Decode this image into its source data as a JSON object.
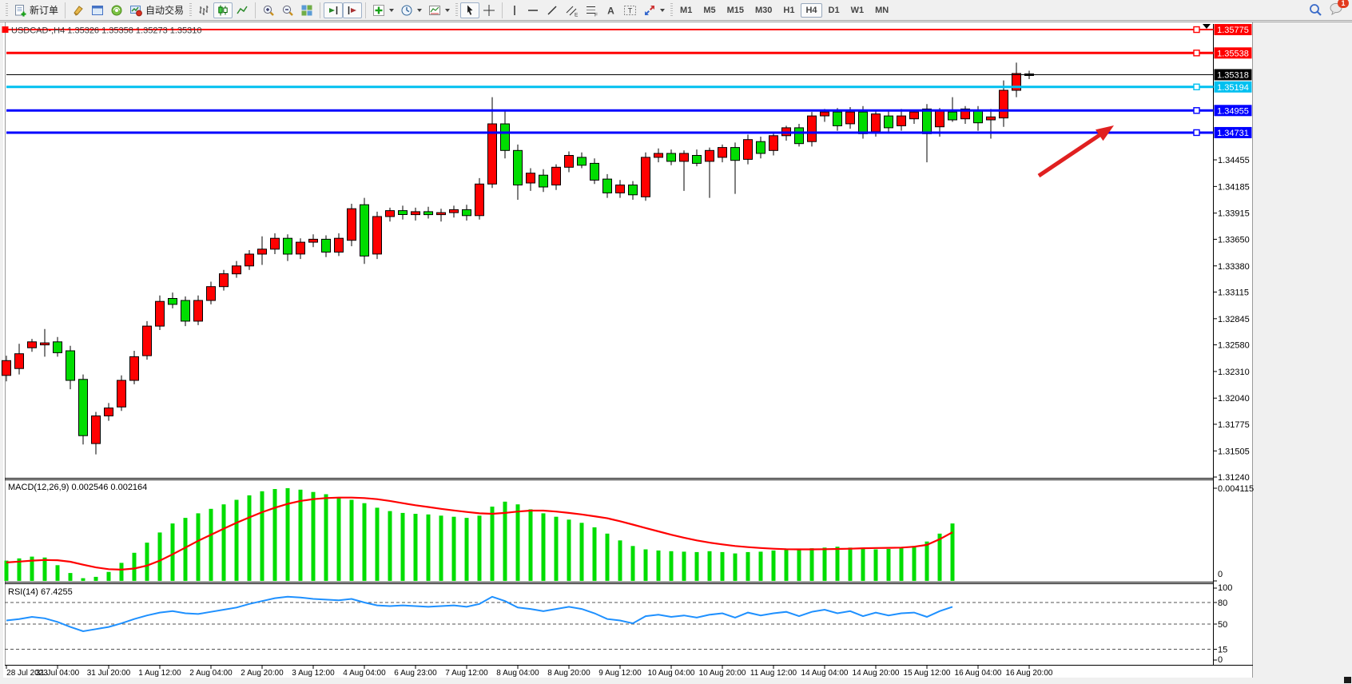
{
  "toolbar": {
    "new_order_label": "新订单",
    "auto_trading_label": "自动交易",
    "timeframes": [
      "M1",
      "M5",
      "M15",
      "M30",
      "H1",
      "H4",
      "D1",
      "W1",
      "MN"
    ],
    "active_timeframe": "H4",
    "notification_count": "1",
    "icon_letters": {
      "channel": "E",
      "fibo": "F",
      "text": "A",
      "label": "T"
    }
  },
  "window_title": {
    "symbol_period": "USDCAD-,H4",
    "ohlc": "1.35326 1.35358 1.35273 1.35310",
    "full": "USDCAD-,H4  1.35326 1.35358 1.35273 1.35310"
  },
  "chart_data": {
    "type": "candlestick",
    "symbol": "USDCAD",
    "timeframe": "H4",
    "bull_color": "#ff0000",
    "bear_color": "#00dd00",
    "price_range": [
      1.31232,
      1.35832
    ],
    "price_axis_ticks": [
      "1.34455",
      "1.34185",
      "1.33915",
      "1.33650",
      "1.33380",
      "1.33115",
      "1.32845",
      "1.32580",
      "1.32310",
      "1.32040",
      "1.31775",
      "1.31505",
      "1.31240"
    ],
    "x_labels": [
      "28 Jul 2023",
      "31 Jul 04:00",
      "31 Jul 20:00",
      "1 Aug 12:00",
      "2 Aug 04:00",
      "2 Aug 20:00",
      "3 Aug 12:00",
      "4 Aug 04:00",
      "6 Aug 23:00",
      "7 Aug 12:00",
      "8 Aug 04:00",
      "8 Aug 20:00",
      "9 Aug 12:00",
      "10 Aug 04:00",
      "10 Aug 20:00",
      "11 Aug 12:00",
      "14 Aug 04:00",
      "14 Aug 20:00",
      "15 Aug 12:00",
      "16 Aug 04:00",
      "16 Aug 20:00"
    ],
    "x_label_every": 4,
    "candles": [
      [
        1.3227,
        1.3247,
        1.3221,
        1.3242
      ],
      [
        1.3234,
        1.3259,
        1.3228,
        1.3249
      ],
      [
        1.3255,
        1.3264,
        1.3251,
        1.3261
      ],
      [
        1.3258,
        1.3274,
        1.3246,
        1.326
      ],
      [
        1.3261,
        1.3266,
        1.3246,
        1.325
      ],
      [
        1.3252,
        1.3257,
        1.3213,
        1.3222
      ],
      [
        1.3223,
        1.3228,
        1.3157,
        1.3166
      ],
      [
        1.3158,
        1.319,
        1.3147,
        1.3186
      ],
      [
        1.3186,
        1.3199,
        1.3181,
        1.3194
      ],
      [
        1.3195,
        1.3227,
        1.3191,
        1.3222
      ],
      [
        1.3222,
        1.3252,
        1.3218,
        1.3246
      ],
      [
        1.3247,
        1.3282,
        1.3243,
        1.3277
      ],
      [
        1.3277,
        1.3308,
        1.3273,
        1.3302
      ],
      [
        1.3305,
        1.3311,
        1.3295,
        1.3299
      ],
      [
        1.3303,
        1.3307,
        1.3277,
        1.3282
      ],
      [
        1.3282,
        1.3308,
        1.3278,
        1.3303
      ],
      [
        1.3303,
        1.3322,
        1.3299,
        1.3317
      ],
      [
        1.3317,
        1.3334,
        1.3313,
        1.333
      ],
      [
        1.333,
        1.3343,
        1.3326,
        1.3338
      ],
      [
        1.3338,
        1.3354,
        1.3334,
        1.335
      ],
      [
        1.335,
        1.3368,
        1.3339,
        1.3355
      ],
      [
        1.3355,
        1.3371,
        1.335,
        1.3366
      ],
      [
        1.3366,
        1.337,
        1.3343,
        1.335
      ],
      [
        1.335,
        1.3366,
        1.3345,
        1.3362
      ],
      [
        1.3362,
        1.337,
        1.3357,
        1.3365
      ],
      [
        1.3365,
        1.3369,
        1.3347,
        1.3352
      ],
      [
        1.3352,
        1.3371,
        1.3348,
        1.3366
      ],
      [
        1.3364,
        1.3401,
        1.3358,
        1.3396
      ],
      [
        1.34,
        1.3407,
        1.334,
        1.3348
      ],
      [
        1.335,
        1.3393,
        1.3345,
        1.3388
      ],
      [
        1.3388,
        1.3397,
        1.3383,
        1.3394
      ],
      [
        1.3394,
        1.3399,
        1.3385,
        1.339
      ],
      [
        1.339,
        1.3397,
        1.3384,
        1.3393
      ],
      [
        1.3393,
        1.3398,
        1.3386,
        1.339
      ],
      [
        1.339,
        1.3396,
        1.3383,
        1.3392
      ],
      [
        1.3392,
        1.3399,
        1.3387,
        1.3395
      ],
      [
        1.3395,
        1.34,
        1.3384,
        1.3389
      ],
      [
        1.3389,
        1.3427,
        1.3385,
        1.3421
      ],
      [
        1.3421,
        1.3509,
        1.3417,
        1.3482
      ],
      [
        1.3482,
        1.3496,
        1.3447,
        1.3455
      ],
      [
        1.3455,
        1.3461,
        1.3405,
        1.342
      ],
      [
        1.3422,
        1.3437,
        1.3414,
        1.3432
      ],
      [
        1.343,
        1.3436,
        1.3413,
        1.3418
      ],
      [
        1.342,
        1.3441,
        1.3415,
        1.3438
      ],
      [
        1.3438,
        1.3454,
        1.3433,
        1.345
      ],
      [
        1.3448,
        1.3453,
        1.3437,
        1.344
      ],
      [
        1.3442,
        1.3447,
        1.3421,
        1.3425
      ],
      [
        1.3426,
        1.3431,
        1.3407,
        1.3412
      ],
      [
        1.3412,
        1.3425,
        1.3407,
        1.342
      ],
      [
        1.342,
        1.3424,
        1.3405,
        1.341
      ],
      [
        1.3408,
        1.3453,
        1.3404,
        1.3448
      ],
      [
        1.3448,
        1.3457,
        1.3443,
        1.3452
      ],
      [
        1.3452,
        1.3456,
        1.344,
        1.3444
      ],
      [
        1.3444,
        1.3455,
        1.3414,
        1.3452
      ],
      [
        1.345,
        1.3456,
        1.3439,
        1.3442
      ],
      [
        1.3444,
        1.3458,
        1.3407,
        1.3455
      ],
      [
        1.3448,
        1.3461,
        1.3443,
        1.3458
      ],
      [
        1.3458,
        1.3463,
        1.3411,
        1.3445
      ],
      [
        1.3446,
        1.3471,
        1.3441,
        1.3466
      ],
      [
        1.3464,
        1.3469,
        1.3447,
        1.3452
      ],
      [
        1.3455,
        1.3473,
        1.345,
        1.347
      ],
      [
        1.347,
        1.348,
        1.3465,
        1.3478
      ],
      [
        1.3478,
        1.3482,
        1.3459,
        1.3462
      ],
      [
        1.3464,
        1.3494,
        1.3459,
        1.349
      ],
      [
        1.349,
        1.3497,
        1.3484,
        1.3494
      ],
      [
        1.3494,
        1.3498,
        1.3475,
        1.348
      ],
      [
        1.3482,
        1.3499,
        1.3477,
        1.3494
      ],
      [
        1.3494,
        1.35,
        1.3467,
        1.3472
      ],
      [
        1.3474,
        1.3496,
        1.3469,
        1.3492
      ],
      [
        1.349,
        1.3496,
        1.3473,
        1.3478
      ],
      [
        1.348,
        1.3497,
        1.3475,
        1.349
      ],
      [
        1.3487,
        1.3496,
        1.3482,
        1.3494
      ],
      [
        1.3497,
        1.3502,
        1.3443,
        1.3472
      ],
      [
        1.3479,
        1.3498,
        1.3469,
        1.3496
      ],
      [
        1.3494,
        1.3509,
        1.3484,
        1.3486
      ],
      [
        1.3487,
        1.35,
        1.3482,
        1.3497
      ],
      [
        1.3495,
        1.35,
        1.3475,
        1.3483
      ],
      [
        1.3486,
        1.3497,
        1.3467,
        1.3489
      ],
      [
        1.3488,
        1.3526,
        1.3479,
        1.3516
      ],
      [
        1.3516,
        1.3544,
        1.3509,
        1.3533
      ],
      [
        1.35326,
        1.35358,
        1.35273,
        1.3531
      ]
    ],
    "levels": [
      {
        "label": "1.35775",
        "price": 1.35775,
        "color": "#ff0000",
        "width": 2,
        "handle_left": true,
        "handle_right": true
      },
      {
        "label": "1.35538",
        "price": 1.35538,
        "color": "#ff0000",
        "width": 3,
        "handle_left": false,
        "handle_right": true
      },
      {
        "label": "1.35194",
        "price": 1.35194,
        "color": "#00c0f0",
        "width": 3,
        "handle_left": false,
        "handle_right": true
      },
      {
        "label": "1.34955",
        "price": 1.34955,
        "color": "#0000ff",
        "width": 3,
        "handle_left": false,
        "handle_right": true
      },
      {
        "label": "1.34731",
        "price": 1.34731,
        "color": "#0000ff",
        "width": 3,
        "handle_left": false,
        "handle_right": true
      }
    ],
    "current_price": {
      "label": "1.35318",
      "value": 1.35318,
      "line_color": "#000000",
      "label_bg": "#000000"
    },
    "indicators": {
      "macd": {
        "label": "MACD(12,26,9) 0.002546 0.002164",
        "scale_max": 0.004115,
        "scale_max_label": "0.004115",
        "zero_label": "0",
        "histogram_color": "#00dd00",
        "signal_color": "#ff0000",
        "histogram": [
          0.0009,
          0.001,
          0.00108,
          0.00104,
          0.0007,
          0.00035,
          0.00012,
          0.00018,
          0.0004,
          0.0008,
          0.00125,
          0.0017,
          0.00215,
          0.00255,
          0.0028,
          0.003,
          0.0032,
          0.0034,
          0.0036,
          0.0038,
          0.00398,
          0.00408,
          0.00412,
          0.00405,
          0.00395,
          0.00385,
          0.00372,
          0.0036,
          0.00345,
          0.00325,
          0.0031,
          0.00302,
          0.00298,
          0.00295,
          0.0029,
          0.00285,
          0.0028,
          0.0029,
          0.0033,
          0.00352,
          0.0034,
          0.00318,
          0.003,
          0.00285,
          0.00272,
          0.00258,
          0.00238,
          0.0021,
          0.0018,
          0.00155,
          0.0014,
          0.00135,
          0.00132,
          0.0013,
          0.00128,
          0.00132,
          0.00128,
          0.00122,
          0.00128,
          0.0013,
          0.00135,
          0.00138,
          0.00142,
          0.00145,
          0.00148,
          0.00152,
          0.00148,
          0.00145,
          0.0014,
          0.00142,
          0.00145,
          0.00155,
          0.00175,
          0.0021,
          0.00255
        ],
        "signal": [
          0.00082,
          0.00086,
          0.0009,
          0.00093,
          0.00092,
          0.00085,
          0.00072,
          0.0006,
          0.00052,
          0.0005,
          0.00055,
          0.00068,
          0.0009,
          0.00118,
          0.00148,
          0.00178,
          0.00205,
          0.00232,
          0.00258,
          0.00282,
          0.00305,
          0.00325,
          0.00342,
          0.00355,
          0.00363,
          0.00368,
          0.0037,
          0.0037,
          0.00368,
          0.00363,
          0.00355,
          0.00345,
          0.00336,
          0.00328,
          0.0032,
          0.00313,
          0.00306,
          0.003,
          0.00298,
          0.00302,
          0.00308,
          0.00312,
          0.00312,
          0.00308,
          0.00302,
          0.00295,
          0.00287,
          0.00278,
          0.00265,
          0.0025,
          0.00235,
          0.0022,
          0.00205,
          0.00192,
          0.0018,
          0.0017,
          0.00162,
          0.00155,
          0.0015,
          0.00146,
          0.00143,
          0.00141,
          0.0014,
          0.0014,
          0.00141,
          0.00142,
          0.00143,
          0.00145,
          0.00146,
          0.00147,
          0.00148,
          0.00152,
          0.0016,
          0.00185,
          0.00216
        ]
      },
      "rsi": {
        "label": "RSI(14) 67.4255",
        "line_color": "#1e90ff",
        "axis_labels": [
          "100",
          "80",
          "50",
          "15",
          "0"
        ],
        "dashed_levels": [
          80,
          50,
          15
        ],
        "range": [
          0,
          100
        ],
        "values": [
          55,
          57,
          60,
          58,
          53,
          46,
          40,
          43,
          46,
          51,
          57,
          62,
          66,
          68,
          65,
          64,
          67,
          70,
          73,
          78,
          82,
          86,
          88,
          87,
          85,
          84,
          83,
          85,
          80,
          76,
          75,
          76,
          75,
          74,
          75,
          76,
          74,
          78,
          88,
          82,
          73,
          71,
          68,
          71,
          74,
          71,
          65,
          57,
          55,
          51,
          61,
          63,
          60,
          62,
          59,
          63,
          65,
          59,
          66,
          62,
          65,
          67,
          61,
          67,
          70,
          65,
          68,
          61,
          66,
          62,
          65,
          66,
          60,
          68,
          74
        ]
      }
    },
    "annotations": [
      {
        "type": "arrow",
        "from": [
          1300,
          220
        ],
        "to": [
          1394,
          157
        ],
        "color": "#e02020"
      }
    ]
  }
}
